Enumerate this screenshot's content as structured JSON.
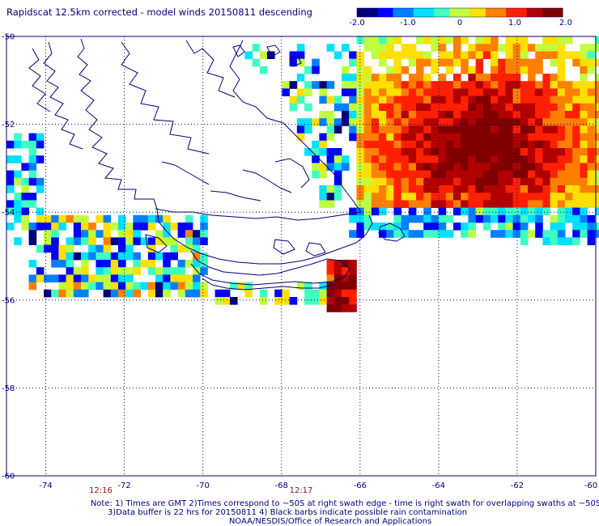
{
  "title": "Rapidscat 12.5km corrected - model winds 20150811 descending",
  "colorbar": {
    "labels": [
      "-2.0",
      "-1.0",
      "0",
      "1.0",
      "2.0"
    ],
    "min": -2.0,
    "max": 2.0,
    "colors": [
      "#00007a",
      "#0000ff",
      "#0080ff",
      "#00e0ff",
      "#40ffc0",
      "#c0ff40",
      "#ffe000",
      "#ff8000",
      "#ff2000",
      "#b00000",
      "#800000"
    ]
  },
  "map": {
    "lon_range": [
      -75,
      -60
    ],
    "lat_range": [
      -60,
      -50
    ],
    "x_ticks": [
      "-74",
      "-72",
      "-70",
      "-68",
      "-66",
      "-64",
      "-62",
      "-60"
    ],
    "y_ticks": [
      "-50",
      "-52",
      "-54",
      "-56",
      "-58",
      "-60"
    ],
    "x_tick_values": [
      -74,
      -72,
      -70,
      -68,
      -66,
      -64,
      -62,
      -60
    ],
    "y_tick_values": [
      -50,
      -52,
      -54,
      -56,
      -58,
      -60
    ],
    "times": [
      {
        "label": "12:16",
        "lon": -72.6
      },
      {
        "label": "12:17",
        "lon": -67.5
      }
    ]
  },
  "notes": [
    "Note: 1) Times are GMT 2)Times correspond to ~50S at right swath edge - time is right swath for overlapping swaths at ~50S",
    "3)Data buffer is 22 hrs for 20150811 4) Black barbs indicate possible rain contamination",
    "NOAA/NESDIS/Office of Research and Applications"
  ]
}
